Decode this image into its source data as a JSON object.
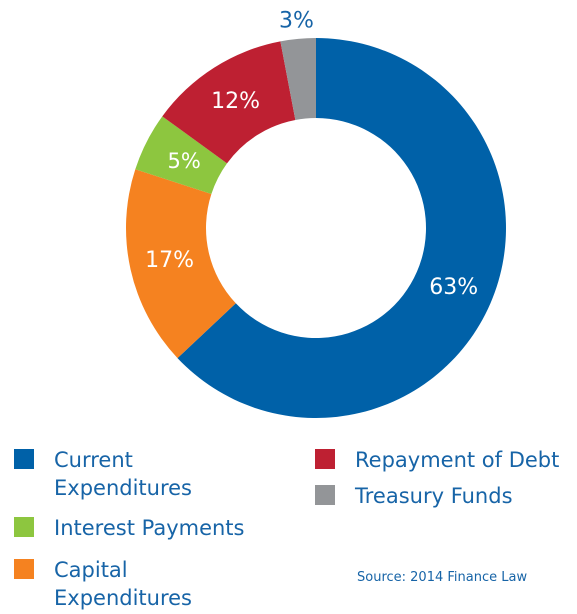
{
  "chart_data": {
    "type": "pie",
    "style": "donut",
    "title": "",
    "slices": [
      {
        "label": "Current Expenditures",
        "value": 63,
        "display": "63%",
        "color": "#0061a8"
      },
      {
        "label": "Capital Expenditures",
        "value": 17,
        "display": "17%",
        "color": "#f58220"
      },
      {
        "label": "Interest Payments",
        "value": 5,
        "display": "5%",
        "color": "#8dc63f"
      },
      {
        "label": "Repayment of Debt",
        "value": 12,
        "display": "12%",
        "color": "#be2032"
      },
      {
        "label": "Treasury Funds",
        "value": 3,
        "display": "3%",
        "color": "#939598"
      }
    ],
    "legend": {
      "placement": "bottom",
      "items": [
        {
          "label_line1": "Current",
          "label_line2": "Expenditures",
          "color": "#0061a8"
        },
        {
          "label_line1": "Repayment of Debt",
          "label_line2": "",
          "color": "#be2032"
        },
        {
          "label_line1": "Treasury Funds",
          "label_line2": "",
          "color": "#939598"
        },
        {
          "label_line1": "Interest Payments",
          "label_line2": "",
          "color": "#8dc63f"
        },
        {
          "label_line1": "Capital",
          "label_line2": "Expenditures",
          "color": "#f58220"
        }
      ]
    },
    "source": "Source: 2014 Finance Law"
  },
  "colors": {
    "label_text_dark": "#1764a7",
    "label_text_light": "#ffffff"
  }
}
